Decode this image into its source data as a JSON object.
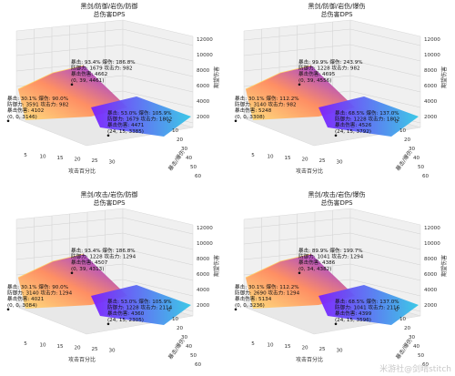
{
  "chart_data": [
    {
      "type": "surface3d",
      "title": "黑剑/防御/岩伤/防御",
      "subtitle": "总伤害DPS",
      "xlabel": "攻击百分比",
      "ylabel": "暴击/爆伤",
      "zlabel": "期望伤害",
      "x_ticks": [
        "5",
        "10",
        "15",
        "20",
        "25",
        "30"
      ],
      "y_ticks": [
        "0",
        "10",
        "20",
        "30",
        "40",
        "50",
        "60"
      ],
      "z_ticks": [
        "2000",
        "4000",
        "6000",
        "8000",
        "10000",
        "12000"
      ],
      "annotations": [
        {
          "lines": [
            "暴击: 93.4%  爆伤: 186.8%",
            "防御力: 1679  攻击力: 982",
            "暴击伤害: 4662",
            "(0, 39, 4461)"
          ]
        },
        {
          "lines": [
            "暴击: 30.1%  爆伤: 90.0%",
            "防御力: 3591  攻击力: 982",
            "暴击伤害: 4102",
            "(0, 0, 3146)"
          ]
        },
        {
          "lines": [
            "暴击: 53.0%  爆伤: 105.9%",
            "防御力: 1679  攻击力: 1802",
            "暴击伤害: 4471",
            "(24, 15, 3385)"
          ]
        }
      ]
    },
    {
      "type": "surface3d",
      "title": "黑剑/防御/岩伤/爆伤",
      "subtitle": "总伤害DPS",
      "xlabel": "攻击百分比",
      "ylabel": "暴击/爆伤",
      "zlabel": "期望伤害",
      "x_ticks": [
        "5",
        "10",
        "15",
        "20",
        "25",
        "30"
      ],
      "y_ticks": [
        "0",
        "10",
        "20",
        "30",
        "40",
        "50",
        "60"
      ],
      "z_ticks": [
        "2000",
        "4000",
        "6000",
        "8000",
        "10000",
        "12000"
      ],
      "annotations": [
        {
          "lines": [
            "暴击: 99.9%  爆伤: 243.9%",
            "防御力: 1228  攻击力: 982",
            "暴击伤害: 4695",
            "(0, 39, 4556)"
          ]
        },
        {
          "lines": [
            "暴击: 30.1%  爆伤: 112.2%",
            "防御力: 3140  攻击力: 982",
            "暴击伤害: 5248",
            "(0, 0, 3308)"
          ]
        },
        {
          "lines": [
            "暴击: 68.5%  爆伤: 137.0%",
            "防御力: 1228  攻击力: 1802",
            "暴击伤害: 4526",
            "(24, 15, 3792)"
          ]
        }
      ]
    },
    {
      "type": "surface3d",
      "title": "黑剑/攻击/岩伤/防御",
      "subtitle": "总伤害DPS",
      "xlabel": "攻击百分比",
      "ylabel": "暴击/爆伤",
      "zlabel": "期望伤害",
      "x_ticks": [
        "5",
        "10",
        "15",
        "20",
        "25",
        "30"
      ],
      "y_ticks": [
        "0",
        "10",
        "20",
        "30",
        "40",
        "50",
        "60"
      ],
      "z_ticks": [
        "2000",
        "4000",
        "6000",
        "8000",
        "10000",
        "12000"
      ],
      "annotations": [
        {
          "lines": [
            "暴击: 93.4%  爆伤: 186.8%",
            "防御力: 1228  攻击力: 1294",
            "暴击伤害: 4507",
            "(0, 39, 4313)"
          ]
        },
        {
          "lines": [
            "暴击: 30.1%  爆伤: 90.0%",
            "防御力: 3140  攻击力: 1294",
            "暴击伤害: 4021",
            "(0, 0, 3084)"
          ]
        },
        {
          "lines": [
            "暴击: 53.0%  爆伤: 105.9%",
            "防御力: 1228  攻击力: 2114",
            "暴击伤害: 4360",
            "(24, 15, 2305)"
          ]
        }
      ]
    },
    {
      "type": "surface3d",
      "title": "黑剑/攻击/岩伤/爆伤",
      "subtitle": "总伤害DPS",
      "xlabel": "攻击百分比",
      "ylabel": "暴击/爆伤",
      "zlabel": "期望伤害",
      "x_ticks": [
        "5",
        "10",
        "15",
        "20",
        "25",
        "30"
      ],
      "y_ticks": [
        "0",
        "10",
        "20",
        "30",
        "40",
        "50",
        "60"
      ],
      "z_ticks": [
        "2000",
        "4000",
        "6000",
        "8000",
        "10000",
        "12000"
      ],
      "annotations": [
        {
          "lines": [
            "暴击: 89.9%  爆伤: 199.7%",
            "防御力: 1041  攻击力: 1294",
            "暴击伤害: 4386",
            "(0, 34, 4382)"
          ]
        },
        {
          "lines": [
            "暴击: 30.1%  爆伤: 112.2%",
            "防御力: 2690  攻击力: 1294",
            "暴击伤害: 5134",
            "(0, 0, 3236)"
          ]
        },
        {
          "lines": [
            "暴击: 68.5%  爆伤: 137.0%",
            "防御力: 1041  攻击力: 2116",
            "暴击伤害: 4399",
            "(24, 15, 3596)"
          ]
        }
      ]
    }
  ],
  "watermark": "米游社@剑晴stitch",
  "colors": {
    "surface_low": "#7b1fff",
    "surface_mid": "#ff8a5c",
    "surface_high": "#ffe07a",
    "surface_edge": "#33c7e6",
    "pane": "#f0f0f0"
  }
}
